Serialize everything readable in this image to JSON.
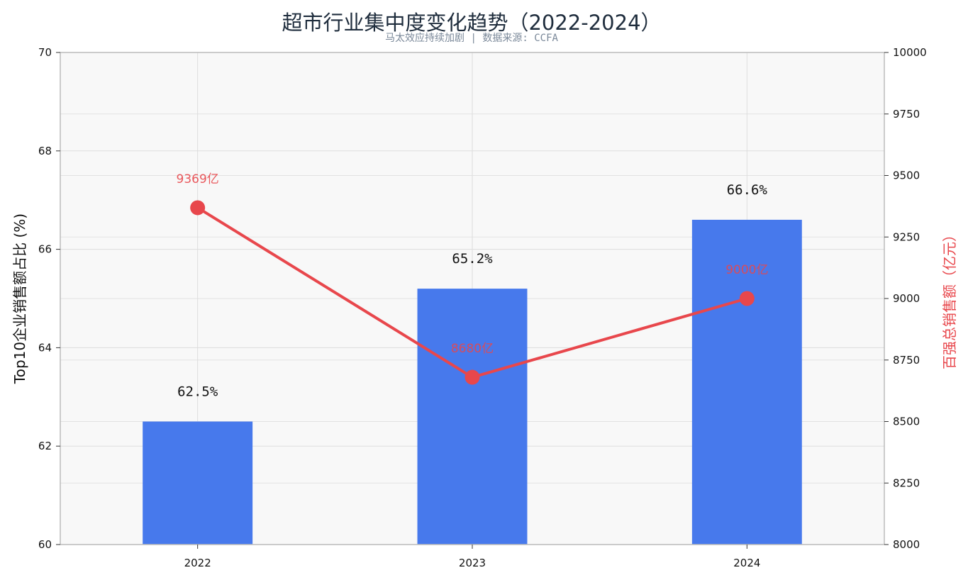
{
  "chart_data": {
    "type": "bar",
    "title": "超市行业集中度变化趋势（2022-2024）",
    "subtitle": "马太效应持续加剧 | 数据来源: CCFA",
    "categories": [
      "2022",
      "2023",
      "2024"
    ],
    "series": [
      {
        "axis": "left",
        "type": "bar",
        "values": [
          62.5,
          65.2,
          66.6
        ],
        "labels": [
          "62.5%",
          "65.2%",
          "66.6%"
        ]
      },
      {
        "axis": "right",
        "type": "line",
        "values": [
          9369,
          8680,
          9000
        ],
        "labels": [
          "9369亿",
          "8680亿",
          "9000亿"
        ]
      }
    ],
    "ylabel": "Top10企业销售额占比 (%)",
    "ylim": [
      60,
      70
    ],
    "yticks": [
      "60",
      "62",
      "64",
      "66",
      "68",
      "70"
    ],
    "y2label": "百强总销售额（亿元）",
    "y2lim": [
      8000,
      10000
    ],
    "y2ticks": [
      "8000",
      "8250",
      "8500",
      "8750",
      "9000",
      "9250",
      "9500",
      "9750",
      "10000"
    ],
    "grid": true,
    "colors": {
      "bar": "#4779ec",
      "line": "#e8474c",
      "plot_background": "#f8f8f8",
      "grid": "#dddddd",
      "axis": "#bbbbbb"
    }
  }
}
